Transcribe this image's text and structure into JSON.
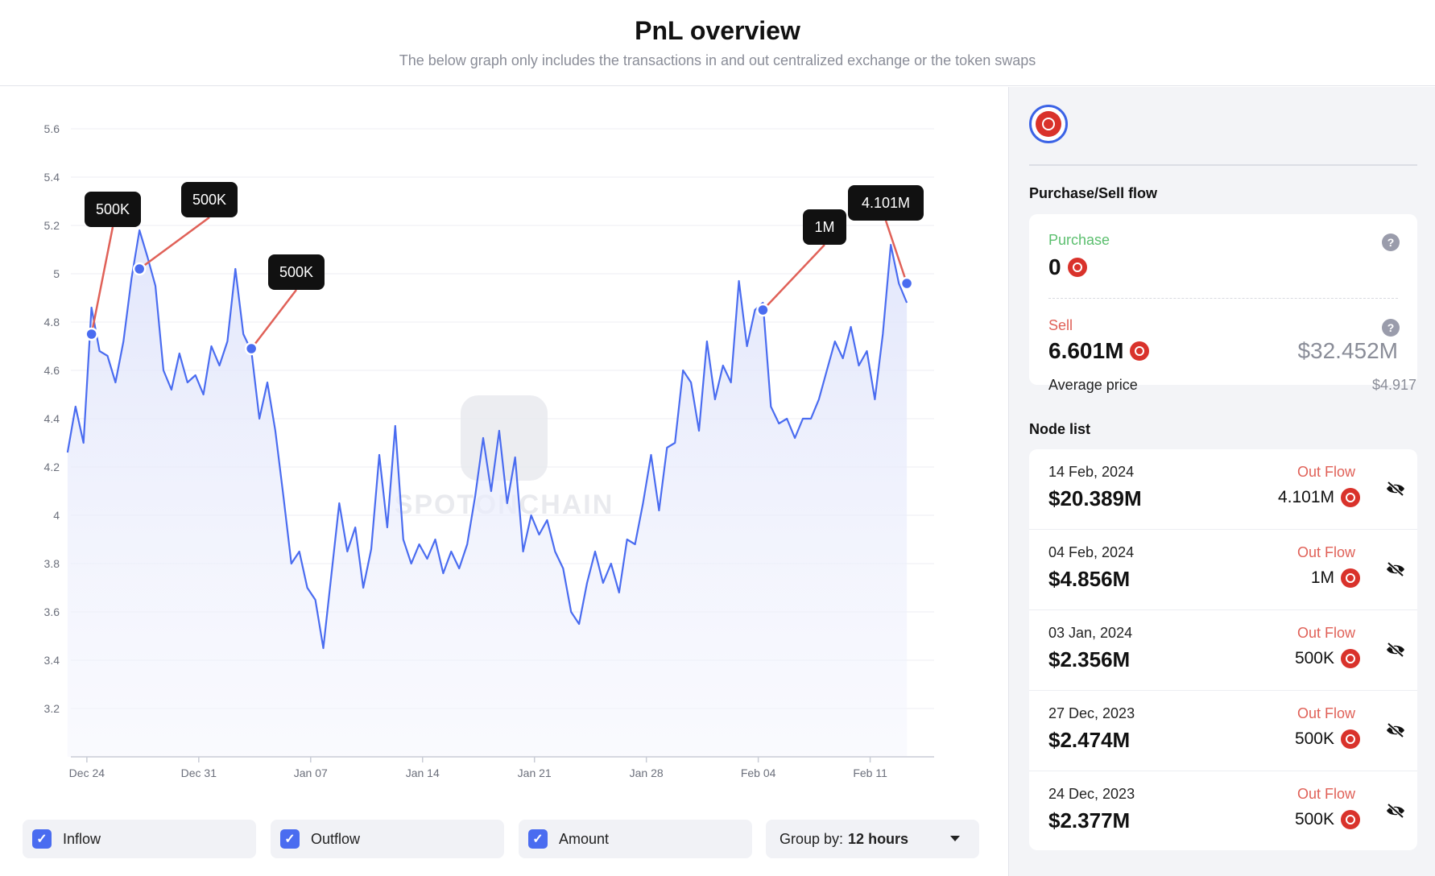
{
  "header": {
    "title": "PnL overview",
    "subtitle": "The below graph only includes the transactions in and out centralized exchange or the token swaps"
  },
  "watermark": "SPOTONCHAIN",
  "controls": {
    "inflow_label": "Inflow",
    "outflow_label": "Outflow",
    "amount_label": "Amount",
    "group_prefix": "Group by:",
    "group_value": "12 hours"
  },
  "side": {
    "flow_title": "Purchase/Sell flow",
    "purchase_label": "Purchase",
    "purchase_value": "0",
    "sell_label": "Sell",
    "sell_value": "6.601M",
    "sell_usd": "$32.452M",
    "avg_label": "Average price",
    "avg_value": "$4.917",
    "help_icon": "?",
    "node_title": "Node list",
    "nodes": [
      {
        "date": "14 Feb, 2024",
        "value": "$20.389M",
        "flow": "Out Flow",
        "amount": "4.101M"
      },
      {
        "date": "04 Feb, 2024",
        "value": "$4.856M",
        "flow": "Out Flow",
        "amount": "1M"
      },
      {
        "date": "03 Jan, 2024",
        "value": "$2.356M",
        "flow": "Out Flow",
        "amount": "500K"
      },
      {
        "date": "27 Dec, 2023",
        "value": "$2.474M",
        "flow": "Out Flow",
        "amount": "500K"
      },
      {
        "date": "24 Dec, 2023",
        "value": "$2.377M",
        "flow": "Out Flow",
        "amount": "500K"
      }
    ]
  },
  "colors": {
    "line": "#4a6cf0",
    "accent": "#4a6cf0",
    "token": "#d9322b",
    "outflow": "#e06158",
    "purchase": "#5bbf6e",
    "marker_connector": "#e06158",
    "marker_box": "#111111"
  },
  "chart_data": {
    "type": "area",
    "title": "",
    "xlabel": "",
    "ylabel": "",
    "yticks": [
      "5.6",
      "5.4",
      "5.2",
      "5",
      "4.8",
      "4.6",
      "4.4",
      "4.2",
      "4",
      "3.8",
      "3.6",
      "3.4",
      "3.2"
    ],
    "ylim": [
      3.0,
      5.6
    ],
    "xlim": [
      "2023-12-23",
      "2024-02-15"
    ],
    "xticks": [
      {
        "label": "Dec 24",
        "date": "2023-12-24"
      },
      {
        "label": "Dec 31",
        "date": "2023-12-31"
      },
      {
        "label": "Jan 07",
        "date": "2024-01-07"
      },
      {
        "label": "Jan 14",
        "date": "2024-01-14"
      },
      {
        "label": "Jan 21",
        "date": "2024-01-21"
      },
      {
        "label": "Jan 28",
        "date": "2024-01-28"
      },
      {
        "label": "Feb 04",
        "date": "2024-02-04"
      },
      {
        "label": "Feb 11",
        "date": "2024-02-11"
      }
    ],
    "grid": true,
    "series": [
      {
        "points": [
          [
            "2023-12-22 19:00",
            4.26
          ],
          [
            "2023-12-23 07:00",
            4.45
          ],
          [
            "2023-12-23 19:00",
            4.3
          ],
          [
            "2023-12-24 07:00",
            4.86
          ],
          [
            "2023-12-24 19:00",
            4.68
          ],
          [
            "2023-12-25 07:00",
            4.66
          ],
          [
            "2023-12-25 19:00",
            4.55
          ],
          [
            "2023-12-26 07:00",
            4.72
          ],
          [
            "2023-12-26 19:00",
            4.98
          ],
          [
            "2023-12-27 07:00",
            5.18
          ],
          [
            "2023-12-27 19:00",
            5.07
          ],
          [
            "2023-12-28 07:00",
            4.95
          ],
          [
            "2023-12-28 19:00",
            4.6
          ],
          [
            "2023-12-29 07:00",
            4.52
          ],
          [
            "2023-12-29 19:00",
            4.67
          ],
          [
            "2023-12-30 07:00",
            4.55
          ],
          [
            "2023-12-30 19:00",
            4.58
          ],
          [
            "2023-12-31 07:00",
            4.5
          ],
          [
            "2023-12-31 19:00",
            4.7
          ],
          [
            "2024-01-01 07:00",
            4.62
          ],
          [
            "2024-01-01 19:00",
            4.72
          ],
          [
            "2024-01-02 07:00",
            5.02
          ],
          [
            "2024-01-02 19:00",
            4.75
          ],
          [
            "2024-01-03 07:00",
            4.68
          ],
          [
            "2024-01-03 19:00",
            4.4
          ],
          [
            "2024-01-04 07:00",
            4.55
          ],
          [
            "2024-01-04 19:00",
            4.35
          ],
          [
            "2024-01-05 07:00",
            4.08
          ],
          [
            "2024-01-05 19:00",
            3.8
          ],
          [
            "2024-01-06 07:00",
            3.85
          ],
          [
            "2024-01-06 19:00",
            3.7
          ],
          [
            "2024-01-07 07:00",
            3.65
          ],
          [
            "2024-01-07 19:00",
            3.45
          ],
          [
            "2024-01-08 07:00",
            3.75
          ],
          [
            "2024-01-08 19:00",
            4.05
          ],
          [
            "2024-01-09 07:00",
            3.85
          ],
          [
            "2024-01-09 19:00",
            3.95
          ],
          [
            "2024-01-10 07:00",
            3.7
          ],
          [
            "2024-01-10 19:00",
            3.86
          ],
          [
            "2024-01-11 07:00",
            4.25
          ],
          [
            "2024-01-11 19:00",
            3.95
          ],
          [
            "2024-01-12 07:00",
            4.37
          ],
          [
            "2024-01-12 19:00",
            3.9
          ],
          [
            "2024-01-13 07:00",
            3.8
          ],
          [
            "2024-01-13 19:00",
            3.88
          ],
          [
            "2024-01-14 07:00",
            3.82
          ],
          [
            "2024-01-14 19:00",
            3.9
          ],
          [
            "2024-01-15 07:00",
            3.76
          ],
          [
            "2024-01-15 19:00",
            3.85
          ],
          [
            "2024-01-16 07:00",
            3.78
          ],
          [
            "2024-01-16 19:00",
            3.88
          ],
          [
            "2024-01-17 07:00",
            4.08
          ],
          [
            "2024-01-17 19:00",
            4.32
          ],
          [
            "2024-01-18 07:00",
            4.1
          ],
          [
            "2024-01-18 19:00",
            4.35
          ],
          [
            "2024-01-19 07:00",
            4.05
          ],
          [
            "2024-01-19 19:00",
            4.24
          ],
          [
            "2024-01-20 07:00",
            3.85
          ],
          [
            "2024-01-20 19:00",
            4.0
          ],
          [
            "2024-01-21 07:00",
            3.92
          ],
          [
            "2024-01-21 19:00",
            3.98
          ],
          [
            "2024-01-22 07:00",
            3.85
          ],
          [
            "2024-01-22 19:00",
            3.78
          ],
          [
            "2024-01-23 07:00",
            3.6
          ],
          [
            "2024-01-23 19:00",
            3.55
          ],
          [
            "2024-01-24 07:00",
            3.72
          ],
          [
            "2024-01-24 19:00",
            3.85
          ],
          [
            "2024-01-25 07:00",
            3.72
          ],
          [
            "2024-01-25 19:00",
            3.8
          ],
          [
            "2024-01-26 07:00",
            3.68
          ],
          [
            "2024-01-26 19:00",
            3.9
          ],
          [
            "2024-01-27 07:00",
            3.88
          ],
          [
            "2024-01-27 19:00",
            4.05
          ],
          [
            "2024-01-28 07:00",
            4.25
          ],
          [
            "2024-01-28 19:00",
            4.02
          ],
          [
            "2024-01-29 07:00",
            4.28
          ],
          [
            "2024-01-29 19:00",
            4.3
          ],
          [
            "2024-01-30 07:00",
            4.6
          ],
          [
            "2024-01-30 19:00",
            4.55
          ],
          [
            "2024-01-31 07:00",
            4.35
          ],
          [
            "2024-01-31 19:00",
            4.72
          ],
          [
            "2024-02-01 07:00",
            4.48
          ],
          [
            "2024-02-01 19:00",
            4.62
          ],
          [
            "2024-02-02 07:00",
            4.55
          ],
          [
            "2024-02-02 19:00",
            4.97
          ],
          [
            "2024-02-03 07:00",
            4.7
          ],
          [
            "2024-02-03 19:00",
            4.85
          ],
          [
            "2024-02-04 07:00",
            4.88
          ],
          [
            "2024-02-04 19:00",
            4.45
          ],
          [
            "2024-02-05 07:00",
            4.38
          ],
          [
            "2024-02-05 19:00",
            4.4
          ],
          [
            "2024-02-06 07:00",
            4.32
          ],
          [
            "2024-02-06 19:00",
            4.4
          ],
          [
            "2024-02-07 07:00",
            4.4
          ],
          [
            "2024-02-07 19:00",
            4.48
          ],
          [
            "2024-02-08 07:00",
            4.6
          ],
          [
            "2024-02-08 19:00",
            4.72
          ],
          [
            "2024-02-09 07:00",
            4.65
          ],
          [
            "2024-02-09 19:00",
            4.78
          ],
          [
            "2024-02-10 07:00",
            4.62
          ],
          [
            "2024-02-10 19:00",
            4.68
          ],
          [
            "2024-02-11 07:00",
            4.48
          ],
          [
            "2024-02-11 19:00",
            4.75
          ],
          [
            "2024-02-12 07:00",
            5.12
          ],
          [
            "2024-02-12 19:00",
            4.96
          ],
          [
            "2024-02-13 07:00",
            4.88
          ]
        ]
      }
    ],
    "markers": [
      {
        "label": "500K",
        "date": "2023-12-24 07:00",
        "value": 4.75
      },
      {
        "label": "500K",
        "date": "2023-12-27 07:00",
        "value": 5.02
      },
      {
        "label": "500K",
        "date": "2024-01-03 07:00",
        "value": 4.69
      },
      {
        "label": "1M",
        "date": "2024-02-04 07:00",
        "value": 4.85
      },
      {
        "label": "4.101M",
        "date": "2024-02-13 07:00",
        "value": 4.96
      }
    ]
  }
}
